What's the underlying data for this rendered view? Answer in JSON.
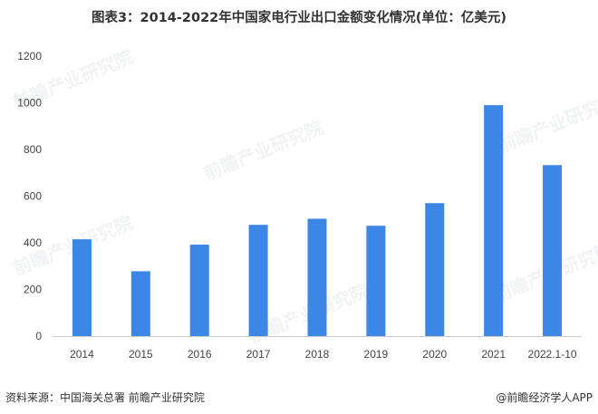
{
  "title": "图表3：2014-2022年中国家电行业出口金额变化情况(单位：亿美元)",
  "source": "资料来源：中国海关总署 前瞻产业研究院",
  "brand": "@前瞻经济学人APP",
  "watermark": "前瞻产业研究院",
  "colors": {
    "bar": "#3c87e6",
    "axis": "#cccccc",
    "text": "#444444"
  },
  "chart_data": {
    "type": "bar",
    "categories": [
      "2014",
      "2015",
      "2016",
      "2017",
      "2018",
      "2019",
      "2020",
      "2021",
      "2022.1-10"
    ],
    "values": [
      415,
      278,
      392,
      477,
      503,
      473,
      570,
      990,
      733
    ],
    "ylim": [
      0,
      1200
    ],
    "yticks": [
      0,
      200,
      400,
      600,
      800,
      1000,
      1200
    ],
    "grid": false,
    "legend": "none"
  }
}
